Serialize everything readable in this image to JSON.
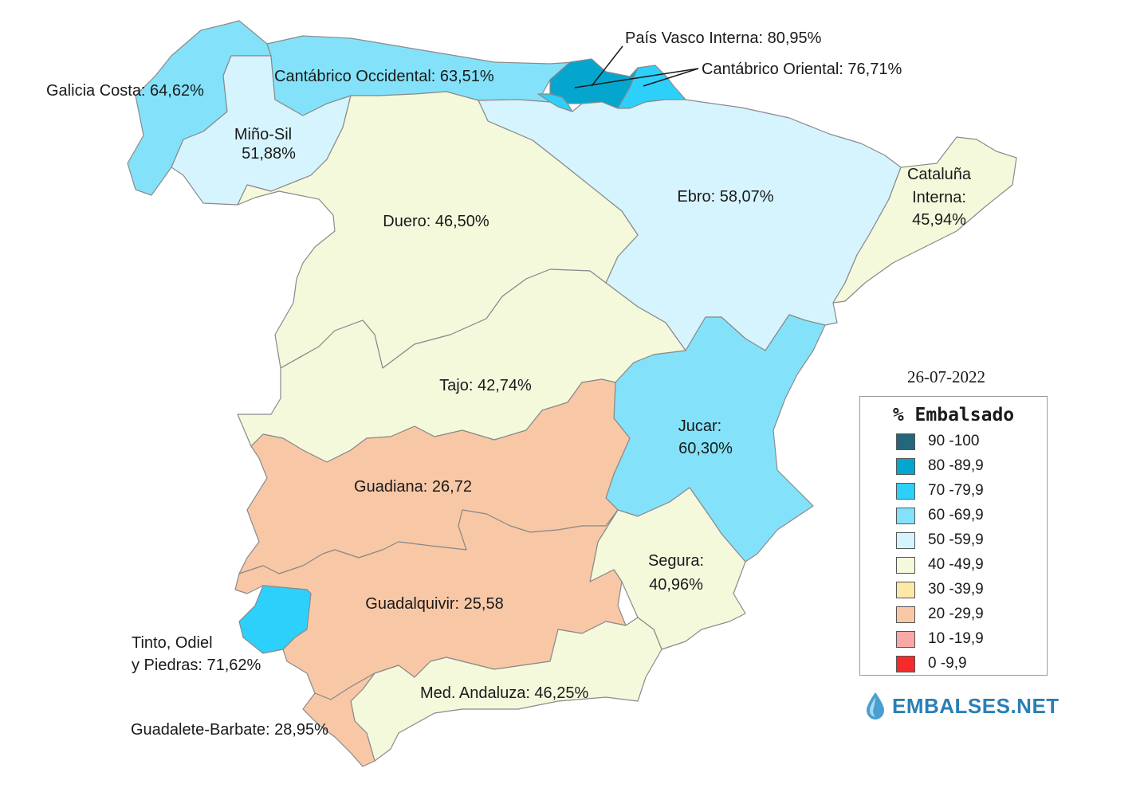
{
  "date": "26-07-2022",
  "legend": {
    "title": "% Embalsado",
    "classes": [
      {
        "range": "90 -100",
        "color": "#25677a"
      },
      {
        "range": "80 -89,9",
        "color": "#05a6ce"
      },
      {
        "range": "70 -79,9",
        "color": "#2dd0fa"
      },
      {
        "range": "60 -69,9",
        "color": "#83e2fa"
      },
      {
        "range": "50 -59,9",
        "color": "#d6f4fd"
      },
      {
        "range": "40 -49,9",
        "color": "#f4f9dc"
      },
      {
        "range": "30 -39,9",
        "color": "#fde9a7"
      },
      {
        "range": "20 -29,9",
        "color": "#f8c8a6"
      },
      {
        "range": "10 -19,9",
        "color": "#f9a8a8"
      },
      {
        "range": "0 -9,9",
        "color": "#f52b2b"
      }
    ]
  },
  "basins": [
    {
      "id": "galicia-costa",
      "name": "Galicia Costa",
      "label": "Galicia Costa: 64,62%",
      "pct": 64.62,
      "color": "#83e2fa"
    },
    {
      "id": "mino-sil",
      "name": "Miño-Sil",
      "label": [
        "Miño-Sil",
        "51,88%"
      ],
      "pct": 51.88,
      "color": "#d6f4fd"
    },
    {
      "id": "cantabrico-occidental",
      "name": "Cantábrico Occidental",
      "label": "Cantábrico Occidental: 63,51%",
      "pct": 63.51,
      "color": "#83e2fa"
    },
    {
      "id": "pais-vasco-interna",
      "name": "País Vasco Interna",
      "label": "País Vasco Interna: 80,95%",
      "pct": 80.95,
      "color": "#05a6ce"
    },
    {
      "id": "cantabrico-oriental",
      "name": "Cantábrico Oriental",
      "label": "Cantábrico Oriental: 76,71%",
      "pct": 76.71,
      "color": "#2dd0fa"
    },
    {
      "id": "ebro",
      "name": "Ebro",
      "label": "Ebro: 58,07%",
      "pct": 58.07,
      "color": "#d6f4fd"
    },
    {
      "id": "cataluna-interna",
      "name": "Cataluña Interna",
      "label": [
        "Cataluña",
        "Interna:",
        "45,94%"
      ],
      "pct": 45.94,
      "color": "#f4f9dc"
    },
    {
      "id": "duero",
      "name": "Duero",
      "label": "Duero: 46,50%",
      "pct": 46.5,
      "color": "#f4f9dc"
    },
    {
      "id": "tajo",
      "name": "Tajo",
      "label": "Tajo: 42,74%",
      "pct": 42.74,
      "color": "#f4f9dc"
    },
    {
      "id": "jucar",
      "name": "Jucar",
      "label": [
        "Jucar:",
        "60,30%"
      ],
      "pct": 60.3,
      "color": "#83e2fa"
    },
    {
      "id": "guadiana",
      "name": "Guadiana",
      "label": "Guadiana: 26,72",
      "pct": 26.72,
      "color": "#f8c8a6"
    },
    {
      "id": "segura",
      "name": "Segura",
      "label": [
        "Segura:",
        "40,96%"
      ],
      "pct": 40.96,
      "color": "#f4f9dc"
    },
    {
      "id": "guadalquivir",
      "name": "Guadalquivir",
      "label": "Guadalquivir: 25,58",
      "pct": 25.58,
      "color": "#f8c8a6"
    },
    {
      "id": "tinto-odiel-piedras",
      "name": "Tinto, Odiel y Piedras",
      "label": [
        "Tinto, Odiel",
        "y Piedras: 71,62%"
      ],
      "pct": 71.62,
      "color": "#2dd0fa"
    },
    {
      "id": "med-andaluza",
      "name": "Med. Andaluza",
      "label": "Med. Andaluza: 46,25%",
      "pct": 46.25,
      "color": "#f4f9dc"
    },
    {
      "id": "guadalete-barbate",
      "name": "Guadalete-Barbate",
      "label": "Guadalete-Barbate: 28,95%",
      "pct": 28.95,
      "color": "#f8c8a6"
    }
  ],
  "brand": {
    "text": "EMBALSES.NET",
    "icon": "water-drop-icon",
    "color": "#2a7fb4"
  }
}
